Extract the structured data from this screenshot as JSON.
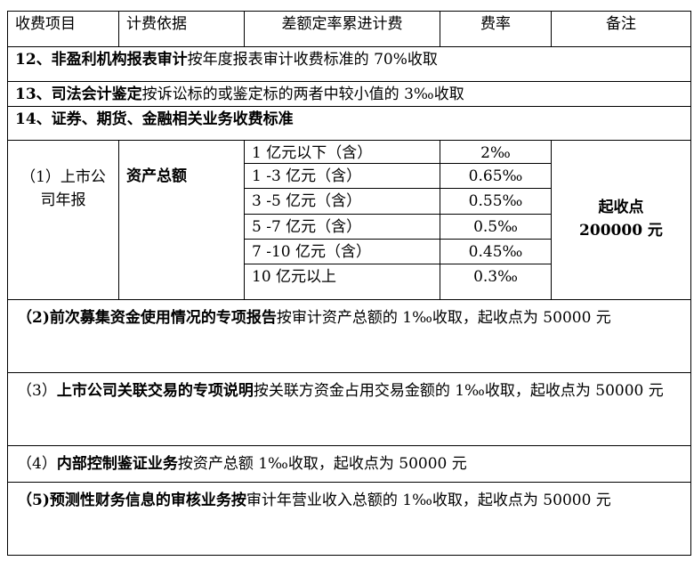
{
  "header": [
    "收费项目",
    "计费依据",
    "差额定率累进计费",
    "费率",
    "备注"
  ],
  "row12": {
    "bold": "12、非盈利机构报表审计",
    "text": "按年度报表审计收费标准的 70%收取"
  },
  "row13": {
    "bold": "13、司法会计鉴定",
    "text": "按诉讼标的或鉴定标的两者中较小值的 3‰收取"
  },
  "row14": {
    "bold": "14、证券、期货、金融相关业务收费标准"
  },
  "listed": {
    "item": "（1）上市公司年报",
    "basis": "资产总额",
    "tiers": [
      {
        "range": "1 亿元以下（含）",
        "rate": "2‰"
      },
      {
        "range": "1 -3 亿元（含）",
        "rate": "0.65‰"
      },
      {
        "range": "3 -5 亿元（含）",
        "rate": "0.55‰"
      },
      {
        "range": "5 -7 亿元（含）",
        "rate": "0.5‰"
      },
      {
        "range": "7 -10 亿元（含）",
        "rate": "0.45‰"
      },
      {
        "range": "10 亿元以上",
        "rate": "0.3‰"
      }
    ],
    "note_label": "起收点",
    "note_value": "200000 元"
  },
  "items": [
    {
      "prefix": "（2)",
      "bold": "前次募集资金使用情况的专项报告",
      "text": "按审计资产总额的 1‰收取，起收点为 50000 元"
    },
    {
      "prefix": "（3）",
      "bold": "上市公司关联交易的专项说明",
      "text": "按关联方资金占用交易金额的 1‰收取，起收点为 50000 元"
    },
    {
      "prefix": "（4）",
      "bold": "内部控制鉴证业务",
      "text": "按资产总额 1‰收取，起收点为 50000 元"
    },
    {
      "prefix": "（5)",
      "bold": "预测性财务信息的审核业务按",
      "text": "审计年营业收入总额的 1‰收取，起收点为 50000 元"
    }
  ]
}
